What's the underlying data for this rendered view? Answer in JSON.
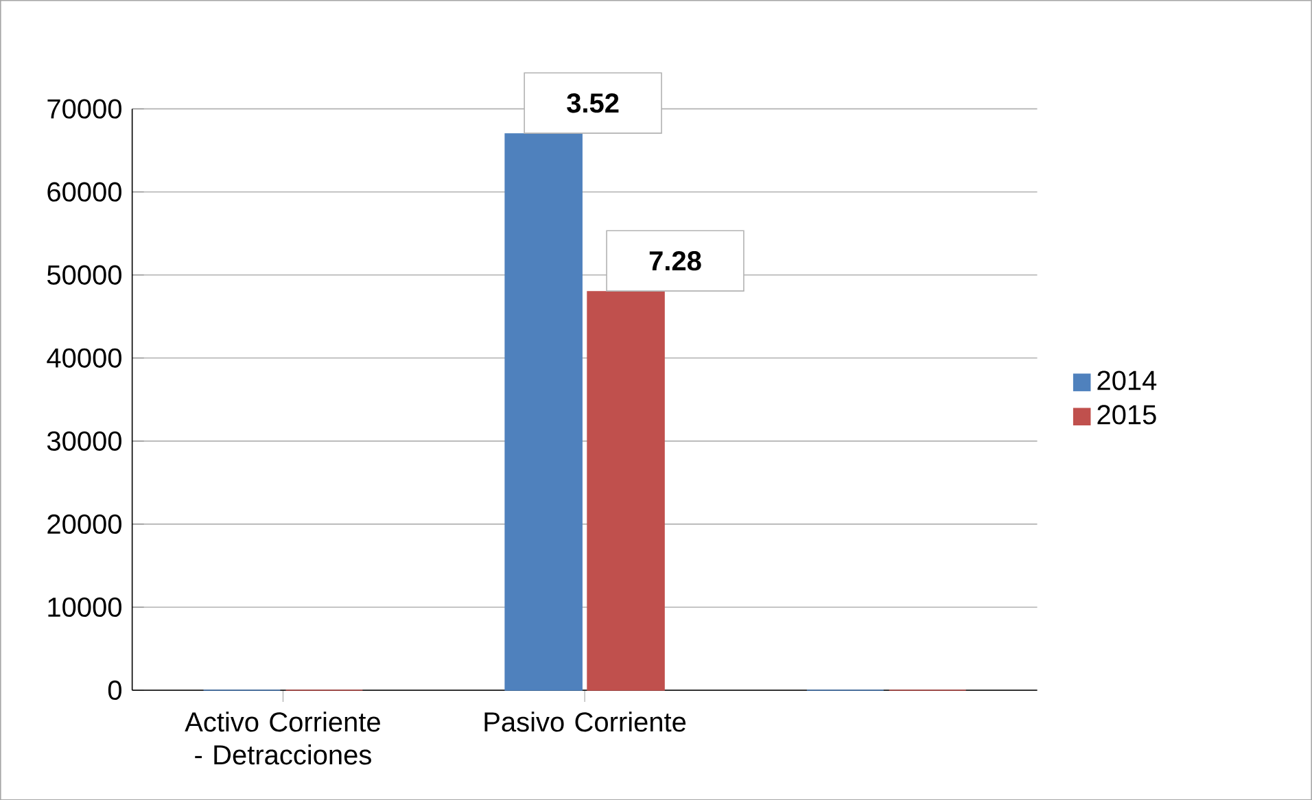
{
  "chart_data": {
    "type": "bar",
    "categories": [
      "Activo Corriente - Detracciones",
      "Pasivo Corriente",
      null
    ],
    "series": [
      {
        "name": "2014",
        "color": "#4f81bd",
        "values": [
          0,
          67000,
          0
        ]
      },
      {
        "name": "2015",
        "color": "#c0504d",
        "values": [
          0,
          48000,
          0
        ]
      }
    ],
    "annotations": [
      {
        "text": "3.52",
        "x": "Pasivo Corriente",
        "y": 67000
      },
      {
        "text": "7.28",
        "x": "Pasivo Corriente",
        "y": 48000
      }
    ],
    "ylim": [
      0,
      70000
    ],
    "yticks": [
      0,
      10000,
      20000,
      30000,
      40000,
      50000,
      60000,
      70000
    ],
    "grid": "y",
    "legend": "right"
  }
}
